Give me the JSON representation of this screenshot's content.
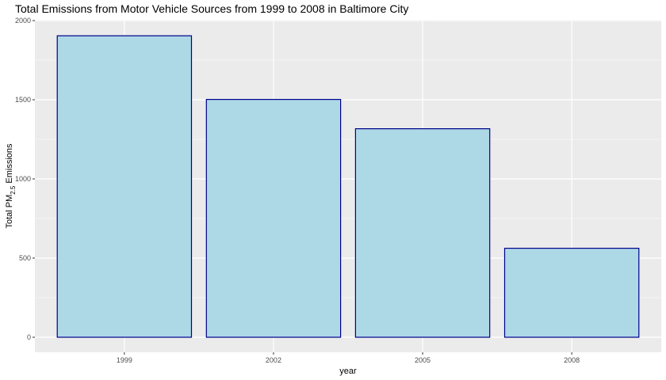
{
  "chart_data": {
    "type": "bar",
    "title": "Total Emissions from Motor Vehicle Sources from 1999 to 2008 in Baltimore City",
    "xlabel": "year",
    "ylabel": "Total PM2.5 Emissions",
    "ylabel_parts": {
      "prefix": "Total PM",
      "subscript": "2.5",
      "suffix": " Emissions"
    },
    "categories": [
      "1999",
      "2002",
      "2005",
      "2008"
    ],
    "values": [
      1904,
      1502,
      1317,
      562
    ],
    "ylim": [
      0,
      2000
    ],
    "yticks": [
      0,
      500,
      1000,
      1500,
      2000
    ],
    "ytick_labels": [
      "0",
      "500",
      "1000",
      "1500",
      "2000"
    ],
    "grid": true,
    "legend": "none",
    "colors": {
      "bar_fill": "#add8e6",
      "bar_stroke": "#00008b",
      "panel_background": "#ebebeb",
      "grid": "#ffffff"
    }
  }
}
